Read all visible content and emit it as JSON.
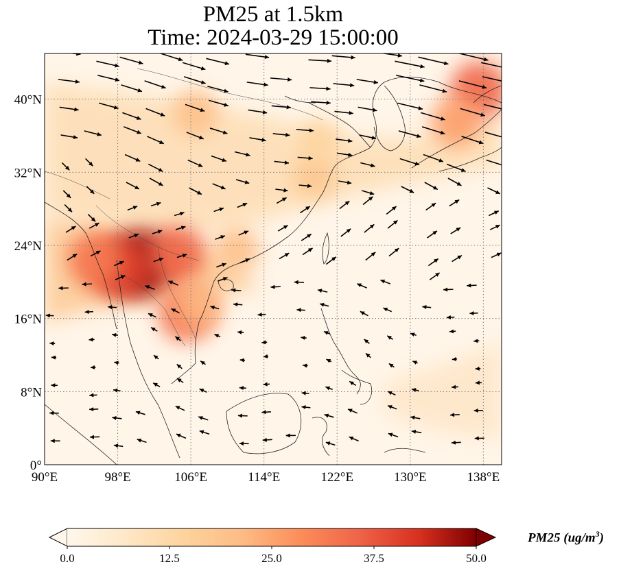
{
  "title": {
    "line1": "PM25 at 1.5km",
    "line2": "Time: 2024-03-29 15:00:00"
  },
  "map": {
    "projection": "PlateCarree",
    "lon_range": [
      90,
      140
    ],
    "lat_range": [
      0,
      45
    ],
    "lon_ticks": [
      "90°E",
      "98°E",
      "106°E",
      "114°E",
      "122°E",
      "130°E",
      "138°E"
    ],
    "lat_ticks": [
      "0°",
      "8°N",
      "16°N",
      "24°N",
      "32°N",
      "40°N"
    ],
    "gridlines": "dotted",
    "field": "PM25",
    "hotspots": [
      {
        "lon": 100.5,
        "lat": 22.0,
        "value": 48
      },
      {
        "lon": 98.0,
        "lat": 21.5,
        "value": 40
      },
      {
        "lon": 95.5,
        "lat": 22.5,
        "value": 32
      },
      {
        "lon": 104.5,
        "lat": 23.0,
        "value": 35
      },
      {
        "lon": 105.5,
        "lat": 16.5,
        "value": 33
      },
      {
        "lon": 107.0,
        "lat": 17.5,
        "value": 22
      },
      {
        "lon": 111.0,
        "lat": 23.5,
        "value": 20
      },
      {
        "lon": 137.5,
        "lat": 41.0,
        "value": 35
      },
      {
        "lon": 135.0,
        "lat": 37.5,
        "value": 26
      },
      {
        "lon": 106.5,
        "lat": 38.5,
        "value": 20
      },
      {
        "lon": 119.5,
        "lat": 31.5,
        "value": 18
      },
      {
        "lon": 120.0,
        "lat": 35.5,
        "value": 14
      }
    ]
  },
  "colorbar": {
    "colormap": "OrRd",
    "min": 0.0,
    "max": 50.0,
    "extend": "both",
    "ticks": [
      "0.0",
      "12.5",
      "25.0",
      "37.5",
      "50.0"
    ],
    "label_main": "PM25 (ug/m",
    "label_sup": "3",
    "label_end": ")"
  }
}
